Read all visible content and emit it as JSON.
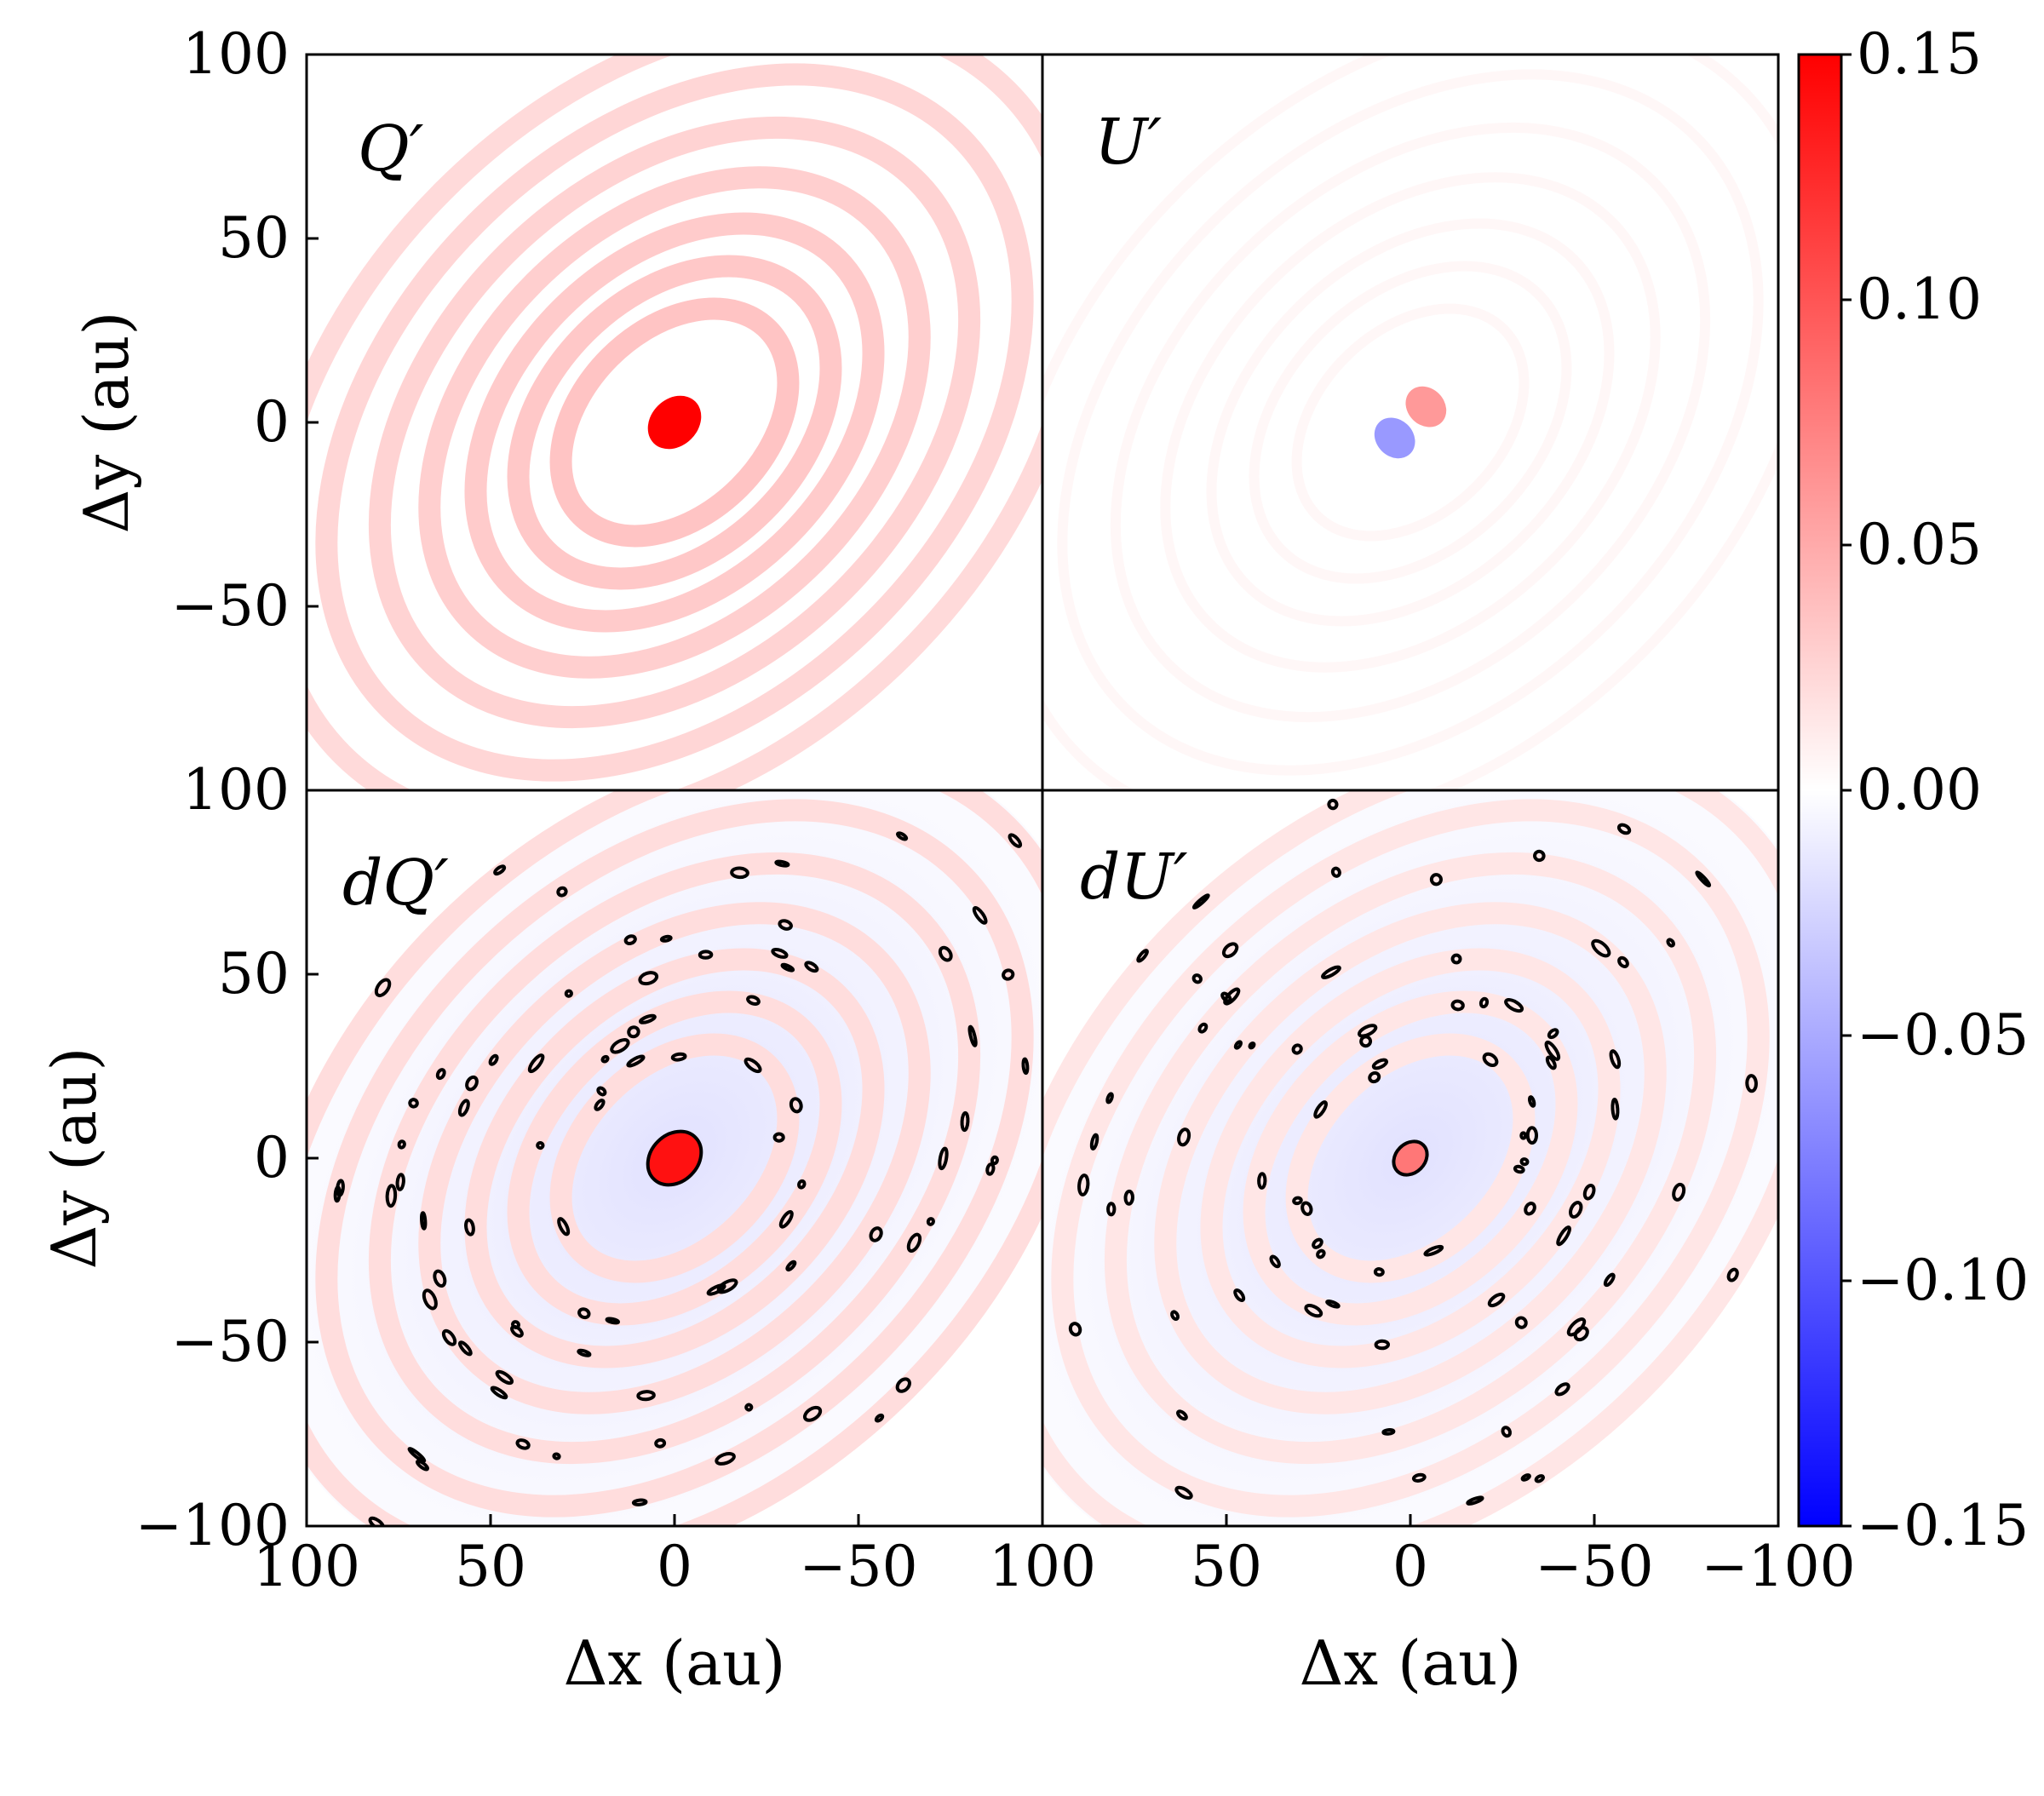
{
  "chart_data": {
    "type": "heatmap",
    "title": "",
    "colormap": "bwr",
    "colorbar": {
      "vmin": -0.15,
      "vmax": 0.15,
      "ticks": [
        "0.15",
        "0.10",
        "0.05",
        "0.00",
        "−0.05",
        "−0.10",
        "−0.15"
      ],
      "colors": {
        "low": "#0000ff",
        "mid": "#ffffff",
        "high": "#ff0000"
      }
    },
    "x_range_au": [
      100,
      -100
    ],
    "y_range_au": [
      -100,
      100
    ],
    "xlabel": "Δx (au)",
    "ylabel": "Δy (au)",
    "panels": [
      {
        "label": "Q′",
        "content": "concentric elliptical ring pattern, positive",
        "center_value": 0.15,
        "ring_value": 0.03,
        "contours": false
      },
      {
        "label": "U′",
        "content": "near-zero quadrupolar pattern",
        "center_value": 0.07,
        "ring_value": 0.005,
        "contours": false
      },
      {
        "label": "dQ′",
        "content": "noisy residual rings with black contours",
        "center_value": 0.14,
        "ring_value": 0.02,
        "contours": true
      },
      {
        "label": "dU′",
        "content": "noisy residual rings with black contours",
        "center_value": 0.08,
        "ring_value": 0.015,
        "contours": true
      }
    ],
    "top_ylabels": [
      "100",
      "50",
      "0",
      "−50"
    ],
    "bottom_ylabels": [
      "100",
      "50",
      "0",
      "−50",
      "−100"
    ],
    "left_xlabels": [
      "100",
      "50",
      "0",
      "−50"
    ],
    "right_xlabels": [
      "100",
      "50",
      "0",
      "−50",
      "−100"
    ]
  },
  "colors": {
    "axis": "#000000",
    "contour": "#000000"
  }
}
